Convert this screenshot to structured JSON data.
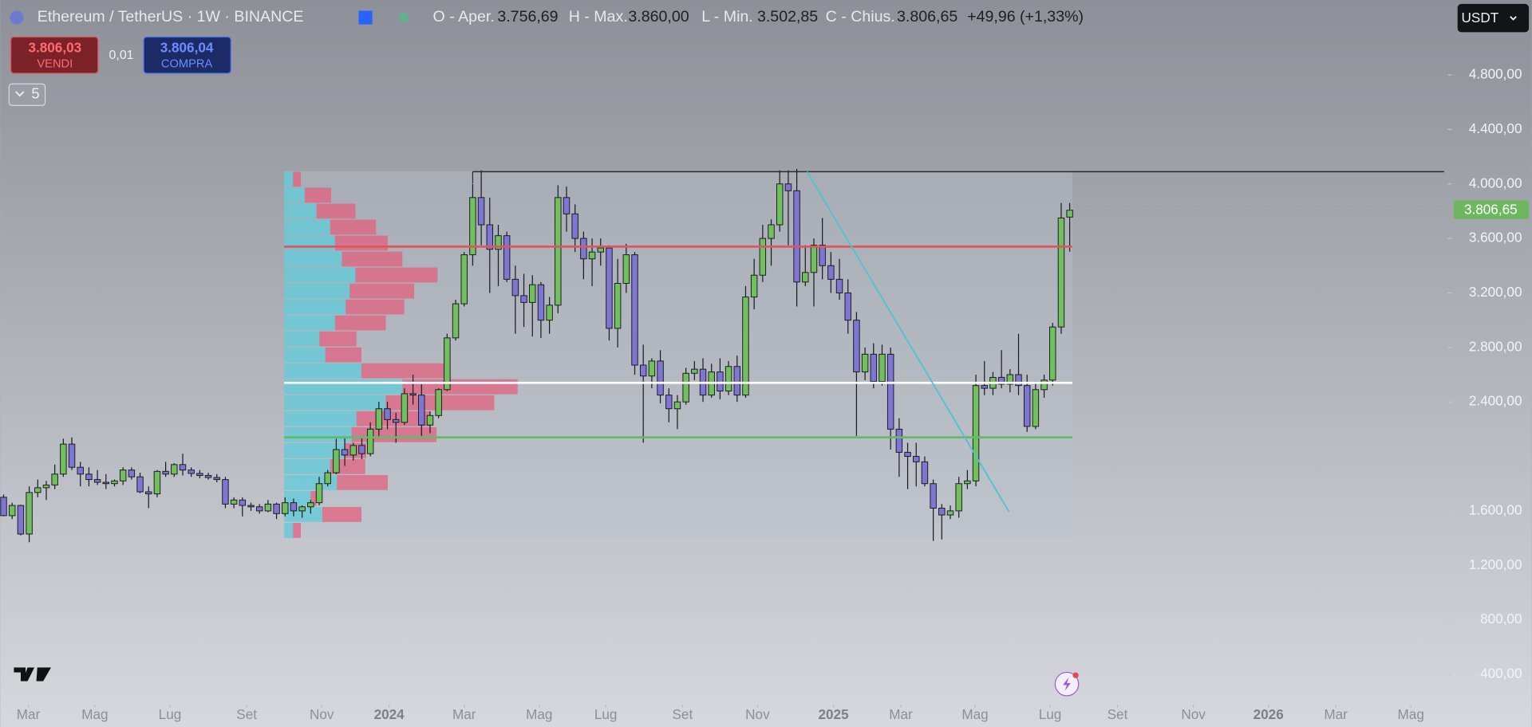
{
  "ui": {
    "symbol": "Ethereum / TetherUS · 1W · BINANCE",
    "o_label": "O - Aper.",
    "o": "3.756,69",
    "h_label": "H - Max.",
    "h": "3.860,00",
    "l_label": "L - Min.",
    "l": "3.502,85",
    "c_label": "C - Chius.",
    "c": "3.806,65",
    "change": "+49,96 (+1,33%)",
    "sell_price": "3.806,03",
    "sell": "VENDI",
    "spread": "0,01",
    "buy_price": "3.806,04",
    "buy": "COMPRA",
    "indicators": "5",
    "currency": "USDT",
    "price_label": "3.806,65"
  },
  "chart_data": {
    "type": "candlestick",
    "up_color": "#72bf5e",
    "down_color": "#7f76d4",
    "x": [
      0,
      1,
      2,
      3,
      4,
      5,
      6,
      7,
      8,
      9,
      10,
      11,
      12,
      13,
      14,
      15,
      16,
      17,
      18,
      19,
      20,
      21,
      22,
      23,
      24,
      25,
      26,
      27,
      28,
      29,
      30,
      31,
      32,
      33,
      34,
      35,
      36,
      37,
      38,
      39,
      40,
      41,
      42,
      43,
      44,
      45,
      46,
      47,
      48,
      49,
      50,
      51,
      52,
      53,
      54,
      55,
      56,
      57,
      58,
      59,
      60,
      61,
      62,
      63,
      64,
      65,
      66,
      67,
      68,
      69,
      70,
      71,
      72,
      73,
      74,
      75,
      76,
      77,
      78,
      79,
      80,
      81,
      82,
      83,
      84,
      85,
      86,
      87,
      88,
      89,
      90,
      91,
      92,
      93,
      94,
      95,
      96,
      97,
      98,
      99,
      100,
      101,
      102,
      103,
      104,
      105,
      106,
      107,
      108,
      109,
      110,
      111,
      112,
      113,
      114,
      115,
      116,
      117,
      118,
      119,
      120,
      121,
      122,
      123,
      124,
      125
    ],
    "open": [
      1700,
      1565,
      1640,
      1430,
      1735,
      1770,
      1790,
      1870,
      2090,
      1920,
      1870,
      1830,
      1810,
      1800,
      1820,
      1900,
      1850,
      1740,
      1725,
      1890,
      1870,
      1940,
      1900,
      1875,
      1860,
      1845,
      1830,
      1650,
      1680,
      1640,
      1630,
      1600,
      1650,
      1580,
      1660,
      1600,
      1630,
      1660,
      1800,
      1880,
      2050,
      2010,
      2080,
      2020,
      2200,
      2350,
      2270,
      2250,
      2460,
      2450,
      2230,
      2300,
      2490,
      2870,
      3120,
      3480,
      3900,
      3700,
      3520,
      3620,
      3300,
      3180,
      3130,
      3260,
      3000,
      3110,
      3900,
      3780,
      3600,
      3450,
      3500,
      3530,
      2940,
      3270,
      3480,
      2670,
      2590,
      2700,
      2450,
      2350,
      2400,
      2610,
      2640,
      2450,
      2620,
      2480,
      2660,
      2450,
      3170,
      3330,
      3600,
      3700,
      4000,
      3950,
      3280,
      3350,
      3550,
      3400,
      3300,
      3200,
      3000,
      2620,
      2750,
      2550,
      2750,
      2200,
      2030,
      2000,
      1960,
      1800,
      1620,
      1570,
      1600,
      1800,
      1820,
      2520,
      2500,
      2580,
      2530,
      2600,
      2520,
      2220,
      2490,
      2560,
      2950,
      3756.69
    ],
    "high": [
      1720,
      1660,
      1645,
      1780,
      1830,
      1820,
      1940,
      2130,
      2140,
      1960,
      1920,
      1900,
      1870,
      1830,
      1920,
      1920,
      1880,
      1780,
      1900,
      1960,
      1950,
      2020,
      1920,
      1900,
      1880,
      1870,
      1850,
      1700,
      1700,
      1660,
      1650,
      1680,
      1660,
      1700,
      1690,
      1640,
      1680,
      1850,
      1900,
      2130,
      2140,
      2100,
      2140,
      2250,
      2400,
      2400,
      2320,
      2500,
      2600,
      2530,
      2330,
      2500,
      2900,
      3150,
      3500,
      4000,
      4100,
      3900,
      3700,
      3650,
      3400,
      3340,
      3330,
      3280,
      3170,
      3990,
      3980,
      3850,
      3650,
      3600,
      3600,
      3550,
      3450,
      3560,
      3500,
      2820,
      2720,
      2780,
      2500,
      2450,
      2650,
      2700,
      2720,
      2680,
      2720,
      2700,
      2740,
      3250,
      3450,
      3700,
      3740,
      4100,
      4100,
      4110,
      3550,
      3600,
      3750,
      3500,
      3450,
      3300,
      3060,
      2800,
      2830,
      2820,
      2800,
      2280,
      2100,
      2100,
      2000,
      1830,
      1650,
      1640,
      1850,
      1900,
      2600,
      2700,
      2620,
      2780,
      2640,
      2900,
      2600,
      2550,
      2600,
      2980,
      3860,
      3860
    ],
    "low": [
      1560,
      1540,
      1420,
      1370,
      1700,
      1680,
      1760,
      1850,
      1900,
      1780,
      1780,
      1790,
      1760,
      1780,
      1790,
      1830,
      1730,
      1620,
      1700,
      1850,
      1850,
      1860,
      1850,
      1840,
      1830,
      1810,
      1620,
      1620,
      1560,
      1600,
      1580,
      1590,
      1540,
      1560,
      1560,
      1550,
      1580,
      1640,
      1780,
      1870,
      1930,
      1970,
      1980,
      2000,
      2150,
      2200,
      2100,
      2230,
      2380,
      2150,
      2170,
      2280,
      2480,
      2850,
      3100,
      3400,
      3550,
      3200,
      3250,
      3280,
      2900,
      2950,
      2880,
      2870,
      2900,
      3050,
      3650,
      3500,
      3300,
      3250,
      3400,
      2850,
      2800,
      3200,
      2600,
      2100,
      2500,
      2390,
      2250,
      2200,
      2380,
      2560,
      2400,
      2430,
      2420,
      2450,
      2400,
      2430,
      3080,
      3280,
      3400,
      3650,
      3550,
      3100,
      3250,
      3100,
      3300,
      3200,
      3150,
      2900,
      2150,
      2560,
      2500,
      2520,
      2050,
      1850,
      1760,
      1780,
      1780,
      1380,
      1390,
      1540,
      1550,
      1760,
      1780,
      2450,
      2450,
      2500,
      2470,
      2450,
      2180,
      2200,
      2430,
      2520,
      2900,
      3502.85
    ],
    "close": [
      1565,
      1640,
      1430,
      1735,
      1770,
      1790,
      1870,
      2090,
      1920,
      1870,
      1830,
      1810,
      1800,
      1820,
      1900,
      1850,
      1740,
      1725,
      1890,
      1870,
      1940,
      1900,
      1875,
      1860,
      1845,
      1830,
      1650,
      1680,
      1640,
      1630,
      1600,
      1650,
      1580,
      1660,
      1600,
      1630,
      1660,
      1800,
      1880,
      2050,
      2010,
      2080,
      2020,
      2200,
      2350,
      2270,
      2250,
      2460,
      2450,
      2230,
      2300,
      2490,
      2870,
      3120,
      3480,
      3900,
      3700,
      3520,
      3620,
      3300,
      3180,
      3130,
      3260,
      3000,
      3110,
      3900,
      3780,
      3600,
      3450,
      3500,
      3530,
      2940,
      3270,
      3480,
      2670,
      2590,
      2700,
      2450,
      2350,
      2400,
      2610,
      2640,
      2450,
      2620,
      2480,
      2660,
      2450,
      3170,
      3330,
      3600,
      3700,
      4000,
      3950,
      3280,
      3350,
      3550,
      3400,
      3300,
      3200,
      3000,
      2620,
      2750,
      2550,
      2750,
      2200,
      2030,
      2000,
      1960,
      1800,
      1620,
      1570,
      1600,
      1800,
      1820,
      2520,
      2500,
      2580,
      2530,
      2600,
      2520,
      2220,
      2490,
      2560,
      2950,
      3750,
      3806.65
    ],
    "xlim": [
      -0.4,
      169.1
    ],
    "ylim": [
      200,
      5350
    ],
    "yticks": [
      {
        "value": 4800,
        "label": "4.800,00"
      },
      {
        "value": 4400,
        "label": "4.400,00"
      },
      {
        "value": 4000,
        "label": "4.000,00"
      },
      {
        "value": 3600,
        "label": "3.600,00"
      },
      {
        "value": 3200,
        "label": "3.200,00"
      },
      {
        "value": 2800,
        "label": "2.800,00"
      },
      {
        "value": 2400,
        "label": "2.400,00"
      },
      {
        "value": 1600,
        "label": "1.600,00"
      },
      {
        "value": 1200,
        "label": "1.200,00"
      },
      {
        "value": 800,
        "label": "800,00"
      },
      {
        "value": 400,
        "label": "400,00"
      }
    ],
    "xticks": [
      {
        "value": 2.9,
        "label": "Mar"
      },
      {
        "value": 10.7,
        "label": "Mag"
      },
      {
        "value": 19.5,
        "label": "Lug"
      },
      {
        "value": 28.5,
        "label": "Set"
      },
      {
        "value": 37.3,
        "label": "Nov"
      },
      {
        "value": 45.2,
        "label": "2024"
      },
      {
        "value": 54.0,
        "label": "Mar"
      },
      {
        "value": 62.8,
        "label": "Mag"
      },
      {
        "value": 70.6,
        "label": "Lug"
      },
      {
        "value": 79.6,
        "label": "Set"
      },
      {
        "value": 88.4,
        "label": "Nov"
      },
      {
        "value": 97.3,
        "label": "2025"
      },
      {
        "value": 105.2,
        "label": "Mar"
      },
      {
        "value": 113.9,
        "label": "Mag"
      },
      {
        "value": 122.7,
        "label": "Lug"
      },
      {
        "value": 130.6,
        "label": "Set"
      },
      {
        "value": 139.5,
        "label": "Nov"
      },
      {
        "value": 148.3,
        "label": "2026"
      },
      {
        "value": 156.2,
        "label": "Mar"
      },
      {
        "value": 165.0,
        "label": "Mag"
      }
    ],
    "volume_profile": {
      "price_range": [
        1398,
        4093
      ],
      "from": 32.9,
      "to": 125.3,
      "up_color": "#5fcbd9",
      "down_color": "#e2607f",
      "up": [
        9,
        21,
        33,
        47,
        52,
        59,
        73,
        67,
        63,
        52,
        36,
        42,
        79,
        121,
        104,
        74,
        69,
        62,
        47,
        54,
        27,
        39,
        9
      ],
      "down": [
        8,
        27,
        40,
        47,
        54,
        62,
        84,
        66,
        60,
        52,
        38,
        37,
        86,
        118,
        111,
        75,
        87,
        22,
        36,
        52,
        6,
        40,
        8
      ]
    },
    "hlines": [
      {
        "price": 4090,
        "from": 55.0,
        "to": 168.9,
        "color": "#2a2b30"
      },
      {
        "price": 3540,
        "from": 32.9,
        "to": 125.3,
        "color": "#e0565e"
      },
      {
        "price": 2540,
        "from": 32.9,
        "to": 125.3,
        "color": "#ffffff"
      },
      {
        "price": 2140,
        "from": 32.9,
        "to": 125.3,
        "color": "#67b96a"
      }
    ],
    "trendline": {
      "x": [
        94.2,
        117.9
      ],
      "price": [
        4090,
        1592
      ],
      "color": "#4fc3cf"
    }
  }
}
